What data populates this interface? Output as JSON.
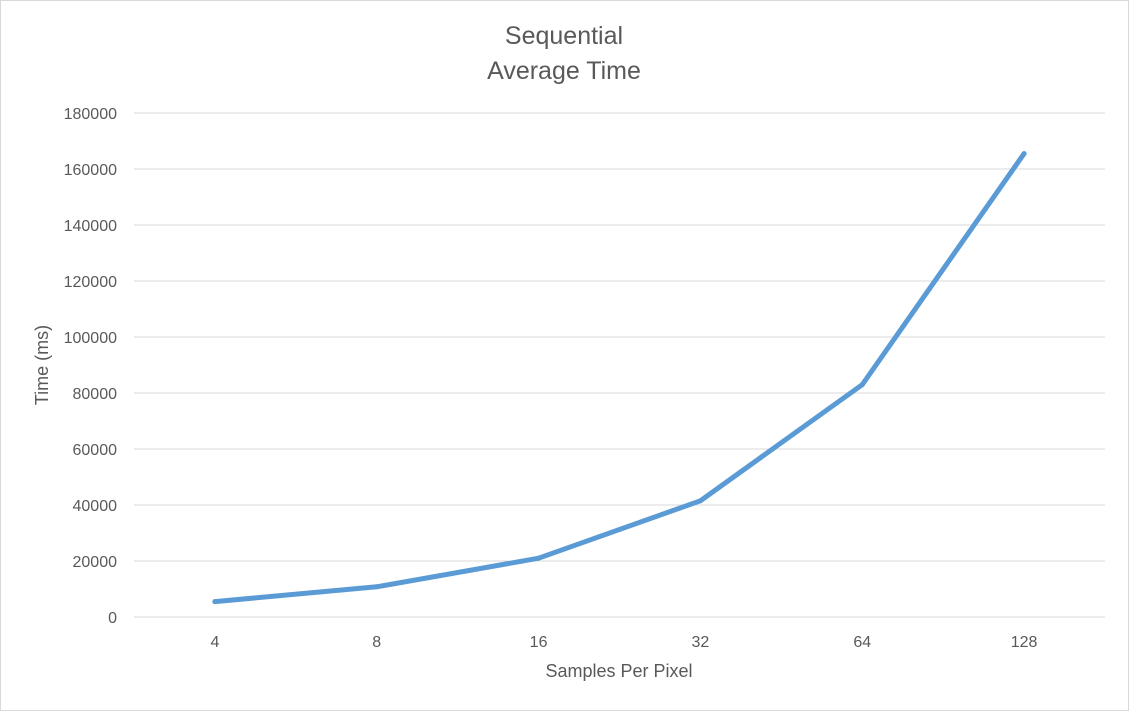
{
  "chart_data": {
    "type": "line",
    "title": "Sequential",
    "subtitle": "Average Time",
    "xlabel": "Samples Per Pixel",
    "ylabel": "Time (ms)",
    "categories": [
      "4",
      "8",
      "16",
      "32",
      "64",
      "128"
    ],
    "series": [
      {
        "values": [
          5500,
          10800,
          21000,
          41500,
          83000,
          165500
        ]
      }
    ],
    "ylim": [
      0,
      180000
    ],
    "y_ticks": [
      "0",
      "20000",
      "40000",
      "60000",
      "80000",
      "100000",
      "120000",
      "140000",
      "160000",
      "180000"
    ],
    "grid": true,
    "legend": "none",
    "colors": {
      "series": "#5b9bd5",
      "grid": "#d9d9d9",
      "text": "#595959"
    }
  }
}
